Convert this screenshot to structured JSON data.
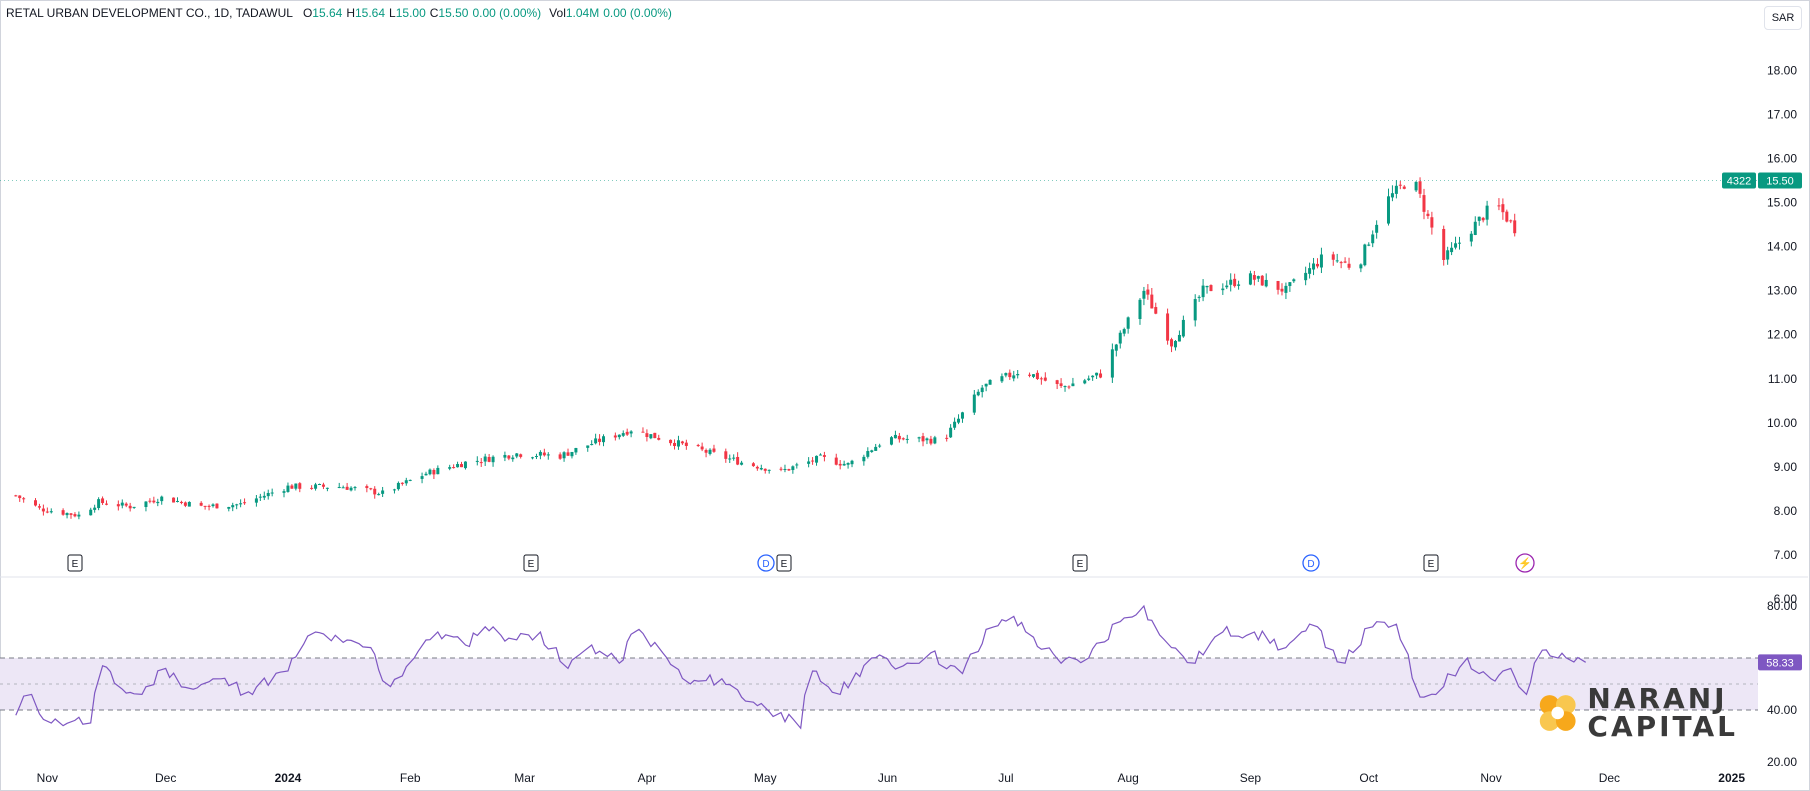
{
  "header": {
    "title": "RETAL URBAN DEVELOPMENT CO., 1D, TADAWUL",
    "o_label": "O",
    "o_value": "15.64",
    "h_label": "H",
    "h_value": "15.64",
    "l_label": "L",
    "l_value": "15.00",
    "c_label": "C",
    "c_value": "15.50",
    "change": "0.00 (0.00%)",
    "vol_label": "Vol",
    "vol_value": "1.04M",
    "vol_change": "0.00 (0.00%)"
  },
  "currency_button": "SAR",
  "price_badge": {
    "countdown": "4322",
    "price": "15.50"
  },
  "rsi_badge": "58.33",
  "event_markers": [
    "E",
    "E",
    "D",
    "E",
    "E",
    "D",
    "E",
    "⚡"
  ],
  "logo": {
    "line1": "NARANJ",
    "line2": "CAPITAL"
  },
  "colors": {
    "up": "#089981",
    "down": "#f23645",
    "rsi": "#7e57c2",
    "band": "#ede7f6",
    "grid": "#f0f3fa"
  },
  "chart_data": [
    {
      "type": "candlestick",
      "title": "RETAL URBAN DEVELOPMENT CO., 1D, TADAWUL",
      "x_tick_labels": [
        "Nov",
        "Dec",
        "2024",
        "Feb",
        "Mar",
        "Apr",
        "May",
        "Jun",
        "Jul",
        "Aug",
        "Sep",
        "Oct",
        "Nov",
        "Dec",
        "2025"
      ],
      "y_tick_labels": [
        "6.00",
        "7.00",
        "8.00",
        "9.00",
        "10.00",
        "11.00",
        "12.00",
        "13.00",
        "14.00",
        "15.00",
        "16.00",
        "17.00",
        "18.00"
      ],
      "ylim": [
        6.0,
        18.0
      ],
      "grid": false,
      "close_anchors": [
        {
          "x": "2023-10-24",
          "close": 8.35
        },
        {
          "x": "2023-10-30",
          "close": 8.05
        },
        {
          "x": "2023-11-09",
          "close": 7.9
        },
        {
          "x": "2023-11-14",
          "close": 8.2
        },
        {
          "x": "2023-11-22",
          "close": 8.1
        },
        {
          "x": "2023-11-30",
          "close": 8.3
        },
        {
          "x": "2023-12-10",
          "close": 8.1
        },
        {
          "x": "2023-12-20",
          "close": 8.15
        },
        {
          "x": "2024-01-01",
          "close": 8.55
        },
        {
          "x": "2024-01-15",
          "close": 8.55
        },
        {
          "x": "2024-01-25",
          "close": 8.4
        },
        {
          "x": "2024-02-05",
          "close": 8.85
        },
        {
          "x": "2024-02-15",
          "close": 9.1
        },
        {
          "x": "2024-02-28",
          "close": 9.3
        },
        {
          "x": "2024-03-10",
          "close": 9.25
        },
        {
          "x": "2024-03-20",
          "close": 9.6
        },
        {
          "x": "2024-03-28",
          "close": 9.85
        },
        {
          "x": "2024-04-10",
          "close": 9.5
        },
        {
          "x": "2024-04-25",
          "close": 9.1
        },
        {
          "x": "2024-05-05",
          "close": 8.9
        },
        {
          "x": "2024-05-15",
          "close": 9.2
        },
        {
          "x": "2024-05-22",
          "close": 9.05
        },
        {
          "x": "2024-06-01",
          "close": 9.65
        },
        {
          "x": "2024-06-15",
          "close": 9.6
        },
        {
          "x": "2024-06-25",
          "close": 10.8
        },
        {
          "x": "2024-07-05",
          "close": 11.2
        },
        {
          "x": "2024-07-15",
          "close": 10.8
        },
        {
          "x": "2024-07-25",
          "close": 11.1
        },
        {
          "x": "2024-08-05",
          "close": 13.0
        },
        {
          "x": "2024-08-12",
          "close": 11.8
        },
        {
          "x": "2024-08-20",
          "close": 13.0
        },
        {
          "x": "2024-09-01",
          "close": 13.3
        },
        {
          "x": "2024-09-10",
          "close": 13.0
        },
        {
          "x": "2024-09-20",
          "close": 13.8
        },
        {
          "x": "2024-09-28",
          "close": 13.5
        },
        {
          "x": "2024-10-05",
          "close": 15.0
        },
        {
          "x": "2024-10-12",
          "close": 15.6
        },
        {
          "x": "2024-10-20",
          "close": 13.7
        },
        {
          "x": "2024-10-28",
          "close": 14.5
        },
        {
          "x": "2024-11-02",
          "close": 15.0
        },
        {
          "x": "2024-11-08",
          "close": 14.3
        },
        {
          "x": "2024-11-14",
          "close": 14.8
        },
        {
          "x": "2024-11-18",
          "close": 15.55
        },
        {
          "x": "2024-11-25",
          "close": 15.5
        }
      ],
      "last": {
        "open": 15.64,
        "high": 15.64,
        "low": 15.0,
        "close": 15.5
      }
    },
    {
      "type": "line",
      "title": "RSI",
      "y_tick_labels": [
        "20.00",
        "40.00",
        "80.00"
      ],
      "ylim": [
        20,
        85
      ],
      "band": [
        40,
        60
      ],
      "midline": 50,
      "series": [
        {
          "name": "",
          "points": [
            {
              "x": "2023-10-24",
              "y": 38
            },
            {
              "x": "2023-10-28",
              "y": 46
            },
            {
              "x": "2023-11-02",
              "y": 35
            },
            {
              "x": "2023-11-08",
              "y": 36
            },
            {
              "x": "2023-11-12",
              "y": 35
            },
            {
              "x": "2023-11-15",
              "y": 57
            },
            {
              "x": "2023-11-20",
              "y": 48
            },
            {
              "x": "2023-11-25",
              "y": 46
            },
            {
              "x": "2023-12-01",
              "y": 56
            },
            {
              "x": "2023-12-08",
              "y": 48
            },
            {
              "x": "2023-12-15",
              "y": 52
            },
            {
              "x": "2023-12-22",
              "y": 47
            },
            {
              "x": "2024-01-01",
              "y": 55
            },
            {
              "x": "2024-01-08",
              "y": 70
            },
            {
              "x": "2024-01-15",
              "y": 66
            },
            {
              "x": "2024-01-22",
              "y": 64
            },
            {
              "x": "2024-01-27",
              "y": 49
            },
            {
              "x": "2024-02-02",
              "y": 60
            },
            {
              "x": "2024-02-08",
              "y": 70
            },
            {
              "x": "2024-02-15",
              "y": 65
            },
            {
              "x": "2024-02-20",
              "y": 72
            },
            {
              "x": "2024-02-28",
              "y": 67
            },
            {
              "x": "2024-03-05",
              "y": 70
            },
            {
              "x": "2024-03-12",
              "y": 56
            },
            {
              "x": "2024-03-18",
              "y": 65
            },
            {
              "x": "2024-03-25",
              "y": 58
            },
            {
              "x": "2024-03-30",
              "y": 71
            },
            {
              "x": "2024-04-05",
              "y": 62
            },
            {
              "x": "2024-04-12",
              "y": 50
            },
            {
              "x": "2024-04-20",
              "y": 52
            },
            {
              "x": "2024-04-28",
              "y": 43
            },
            {
              "x": "2024-05-05",
              "y": 39
            },
            {
              "x": "2024-05-10",
              "y": 33
            },
            {
              "x": "2024-05-13",
              "y": 55
            },
            {
              "x": "2024-05-20",
              "y": 46
            },
            {
              "x": "2024-05-28",
              "y": 60
            },
            {
              "x": "2024-06-05",
              "y": 57
            },
            {
              "x": "2024-06-12",
              "y": 62
            },
            {
              "x": "2024-06-20",
              "y": 54
            },
            {
              "x": "2024-06-28",
              "y": 72
            },
            {
              "x": "2024-07-03",
              "y": 76
            },
            {
              "x": "2024-07-08",
              "y": 68
            },
            {
              "x": "2024-07-15",
              "y": 58
            },
            {
              "x": "2024-07-22",
              "y": 60
            },
            {
              "x": "2024-07-30",
              "y": 74
            },
            {
              "x": "2024-08-05",
              "y": 80
            },
            {
              "x": "2024-08-12",
              "y": 64
            },
            {
              "x": "2024-08-18",
              "y": 58
            },
            {
              "x": "2024-08-25",
              "y": 70
            },
            {
              "x": "2024-09-02",
              "y": 70
            },
            {
              "x": "2024-09-10",
              "y": 64
            },
            {
              "x": "2024-09-18",
              "y": 72
            },
            {
              "x": "2024-09-25",
              "y": 58
            },
            {
              "x": "2024-10-02",
              "y": 72
            },
            {
              "x": "2024-10-08",
              "y": 73
            },
            {
              "x": "2024-10-14",
              "y": 45
            },
            {
              "x": "2024-10-20",
              "y": 49
            },
            {
              "x": "2024-10-26",
              "y": 60
            },
            {
              "x": "2024-11-01",
              "y": 52
            },
            {
              "x": "2024-11-06",
              "y": 56
            },
            {
              "x": "2024-11-10",
              "y": 46
            },
            {
              "x": "2024-11-14",
              "y": 63
            },
            {
              "x": "2024-11-18",
              "y": 60
            },
            {
              "x": "2024-11-25",
              "y": 58.33
            }
          ]
        }
      ]
    }
  ]
}
